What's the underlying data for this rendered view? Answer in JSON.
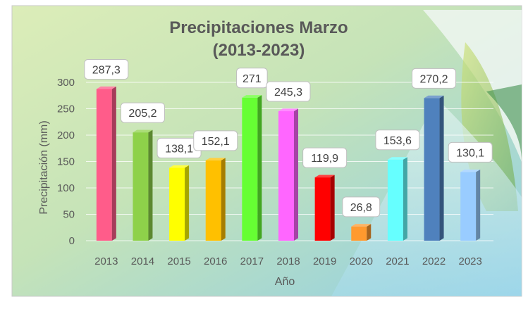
{
  "chart_data": {
    "type": "bar",
    "title": "Precipitaciones Marzo",
    "subtitle": "(2013-2023)",
    "xlabel": "Año",
    "ylabel": "Precipitación (mm)",
    "ylim": [
      0,
      300
    ],
    "yticks": [
      "0",
      "50",
      "100",
      "150",
      "200",
      "250",
      "300"
    ],
    "grid": true,
    "legend": "none",
    "categories": [
      "2013",
      "2014",
      "2015",
      "2016",
      "2017",
      "2018",
      "2019",
      "2020",
      "2021",
      "2022",
      "2023"
    ],
    "values": [
      287.3,
      205.2,
      138.1,
      152.1,
      271,
      245.3,
      119.9,
      26.8,
      153.6,
      270.2,
      130.1
    ],
    "value_labels": [
      "287,3",
      "205,2",
      "138,1",
      "152,1",
      "271",
      "245,3",
      "119,9",
      "26,8",
      "153,6",
      "270,2",
      "130,1"
    ],
    "colors": [
      "#ff5c8a",
      "#8ed14a",
      "#ffff00",
      "#ffc000",
      "#66ff33",
      "#ff66ff",
      "#ff0000",
      "#ff9a2e",
      "#66ffff",
      "#4f81bd",
      "#99ccff"
    ]
  }
}
